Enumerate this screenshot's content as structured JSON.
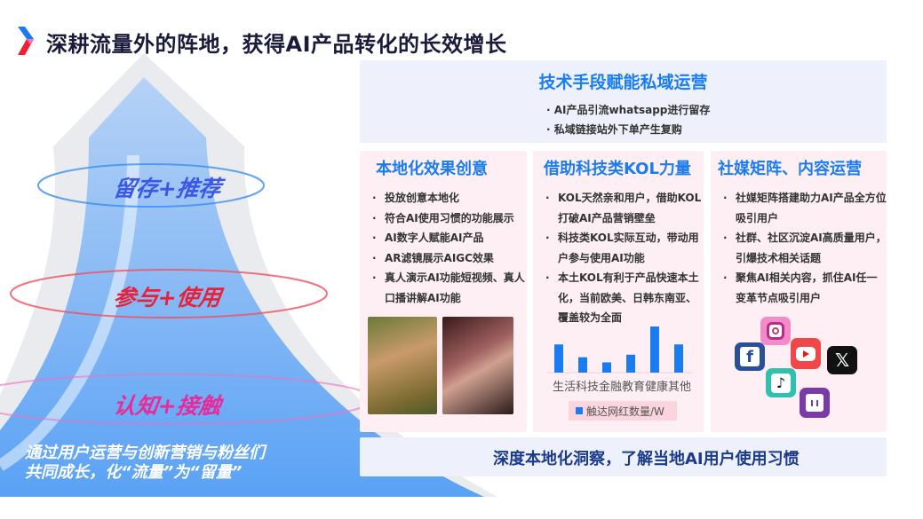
{
  "title": "深耕流量外的阵地，获得AI产品转化的长效增长",
  "funnel": {
    "stages": [
      "留存+推荐",
      "参与+使用",
      "认知+接触"
    ],
    "stage_colors": [
      "#3a57e8",
      "#e8213a",
      "#e82a9a"
    ],
    "caption_lines": [
      "通过用户运营与创新营销与粉丝们",
      "共同成长，化“流量”为“留量”"
    ]
  },
  "top_panel": {
    "heading": "技术手段赋能私域运营",
    "items": [
      "AI产品引流whatsapp进行留存",
      "私域链接站外下单产生复购"
    ]
  },
  "columns": [
    {
      "heading": "本地化效果创意",
      "items": [
        "投放创意本地化",
        "符合AI使用习惯的功能展示",
        "AI数字人赋能AI产品",
        "AR滤镜展示AIGC效果",
        "真人演示AI功能短视频、真人口播讲解AI功能"
      ]
    },
    {
      "heading": "借助科技类KOL力量",
      "items": [
        "KOL天然亲和用户，借助KOL打破AI产品营销壁垒",
        "科技类KOL实际互动，带动用户参与使用AI功能",
        "本土KOL有利于产品快速本土化，当前欧美、日韩东南亚、覆盖较为全面"
      ]
    },
    {
      "heading": "社媒矩阵、内容运营",
      "items": [
        "社媒矩阵搭建助力AI产品全方位吸引用户",
        "社群、社区沉淀AI高质量用户，引爆技术相关话题",
        "聚焦AI相关内容，抓住AI任一变革节点吸引用户"
      ]
    }
  ],
  "social_icons": [
    "instagram-icon",
    "facebook-icon",
    "youtube-icon",
    "x-icon",
    "tiktok-icon",
    "twitch-icon"
  ],
  "bottom_bar": "深度本地化洞察，了解当地AI用户使用习惯",
  "chart_data": {
    "type": "bar",
    "categories": [
      "生活",
      "科技",
      "金融",
      "教育",
      "健康",
      "其他"
    ],
    "series": [
      {
        "name": "触达网红数量/W",
        "values": [
          5.5,
          3,
          2,
          3.5,
          9,
          5.5
        ]
      }
    ],
    "color": "#1a7cf0",
    "legend": "bottom",
    "grid": false
  },
  "accent": "#1a7cf0"
}
